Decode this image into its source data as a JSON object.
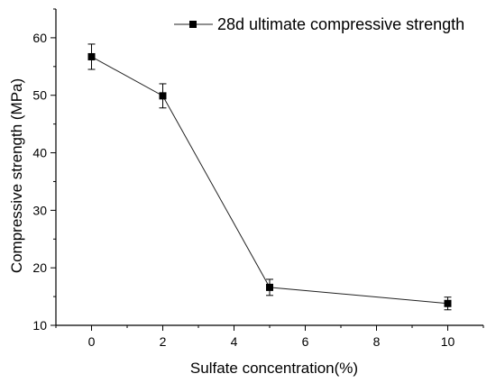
{
  "chart_data": {
    "type": "line",
    "xlabel": "Sulfate concentration(%)",
    "ylabel": "Compressive strength (MPa)",
    "xlim": [
      -1,
      11
    ],
    "ylim": [
      10,
      65
    ],
    "x_ticks": [
      0,
      2,
      4,
      6,
      8,
      10
    ],
    "y_ticks": [
      10,
      20,
      30,
      40,
      50,
      60
    ],
    "legend_position": "top-right",
    "series": [
      {
        "name": "28d ultimate compressive strength",
        "color": "#000000",
        "marker": "square",
        "x": [
          0,
          2,
          5,
          10
        ],
        "y": [
          56.7,
          49.9,
          16.6,
          13.8
        ],
        "error": [
          2.2,
          2.1,
          1.4,
          1.1
        ]
      }
    ]
  }
}
